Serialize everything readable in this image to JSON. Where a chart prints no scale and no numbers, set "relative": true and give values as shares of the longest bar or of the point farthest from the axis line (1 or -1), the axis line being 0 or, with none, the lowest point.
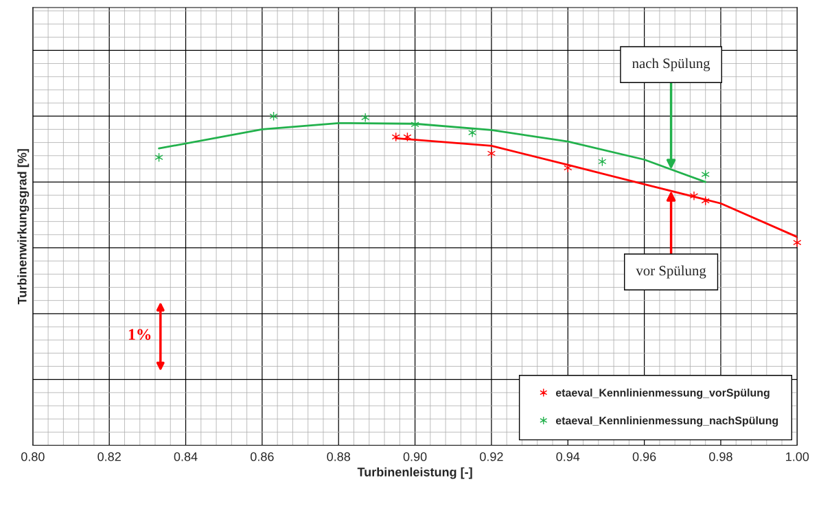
{
  "chart_data": {
    "type": "scatter",
    "relative": true,
    "xlabel": "Turbinenleistung [-]",
    "ylabel": "Turbinenwirkungsgrad [%]",
    "xlim": [
      0.8,
      1.0
    ],
    "xticks": [
      {
        "value": 0.8,
        "label": "0.80"
      },
      {
        "value": 0.82,
        "label": "0.82"
      },
      {
        "value": 0.84,
        "label": "0.84"
      },
      {
        "value": 0.86,
        "label": "0.86"
      },
      {
        "value": 0.88,
        "label": "0.88"
      },
      {
        "value": 0.9,
        "label": "0.90"
      },
      {
        "value": 0.92,
        "label": "0.92"
      },
      {
        "value": 0.94,
        "label": "0.94"
      },
      {
        "value": 0.96,
        "label": "0.96"
      },
      {
        "value": 0.98,
        "label": "0.98"
      },
      {
        "value": 1.0,
        "label": "1.00"
      }
    ],
    "grid": true,
    "legend": "bottom right",
    "marker": "cross",
    "series": [
      {
        "name": "etaeval_Kennlinienmessung_vorSpülung",
        "color": "#ff0000",
        "x": [
          0.895,
          0.898,
          0.92,
          0.94,
          0.973,
          0.976,
          1.0
        ],
        "values": [
          0.937,
          0.937,
          0.887,
          0.843,
          0.758,
          0.743,
          0.616
        ]
      },
      {
        "name": "etaeval_Kennlinienmessung_nachSpülung",
        "color": "#22b14c",
        "x": [
          0.833,
          0.863,
          0.887,
          0.9,
          0.915,
          0.949,
          0.976
        ],
        "values": [
          0.875,
          1,
          0.996,
          0.975,
          0.95,
          0.862,
          0.823
        ]
      },
      {
        "type": "line",
        "color": "#ff0000",
        "marker": "none",
        "x": [
          0.895,
          0.92,
          0.94,
          0.96,
          0.98,
          1.0
        ],
        "values": [
          0.933,
          0.91,
          0.852,
          0.793,
          0.735,
          0.633
        ]
      },
      {
        "type": "line",
        "color": "#22b14c",
        "marker": "none",
        "x": [
          0.833,
          0.86,
          0.88,
          0.9,
          0.92,
          0.94,
          0.96,
          0.976
        ],
        "values": [
          0.902,
          0.96,
          0.979,
          0.977,
          0.958,
          0.923,
          0.868,
          0.8
        ]
      }
    ],
    "annotations": [
      {
        "text": "nach Spülung",
        "x": 0.967,
        "y": 0.838
      },
      {
        "text": "vor Spülung",
        "x": 0.967,
        "y": 0.773
      },
      "1%"
    ]
  }
}
